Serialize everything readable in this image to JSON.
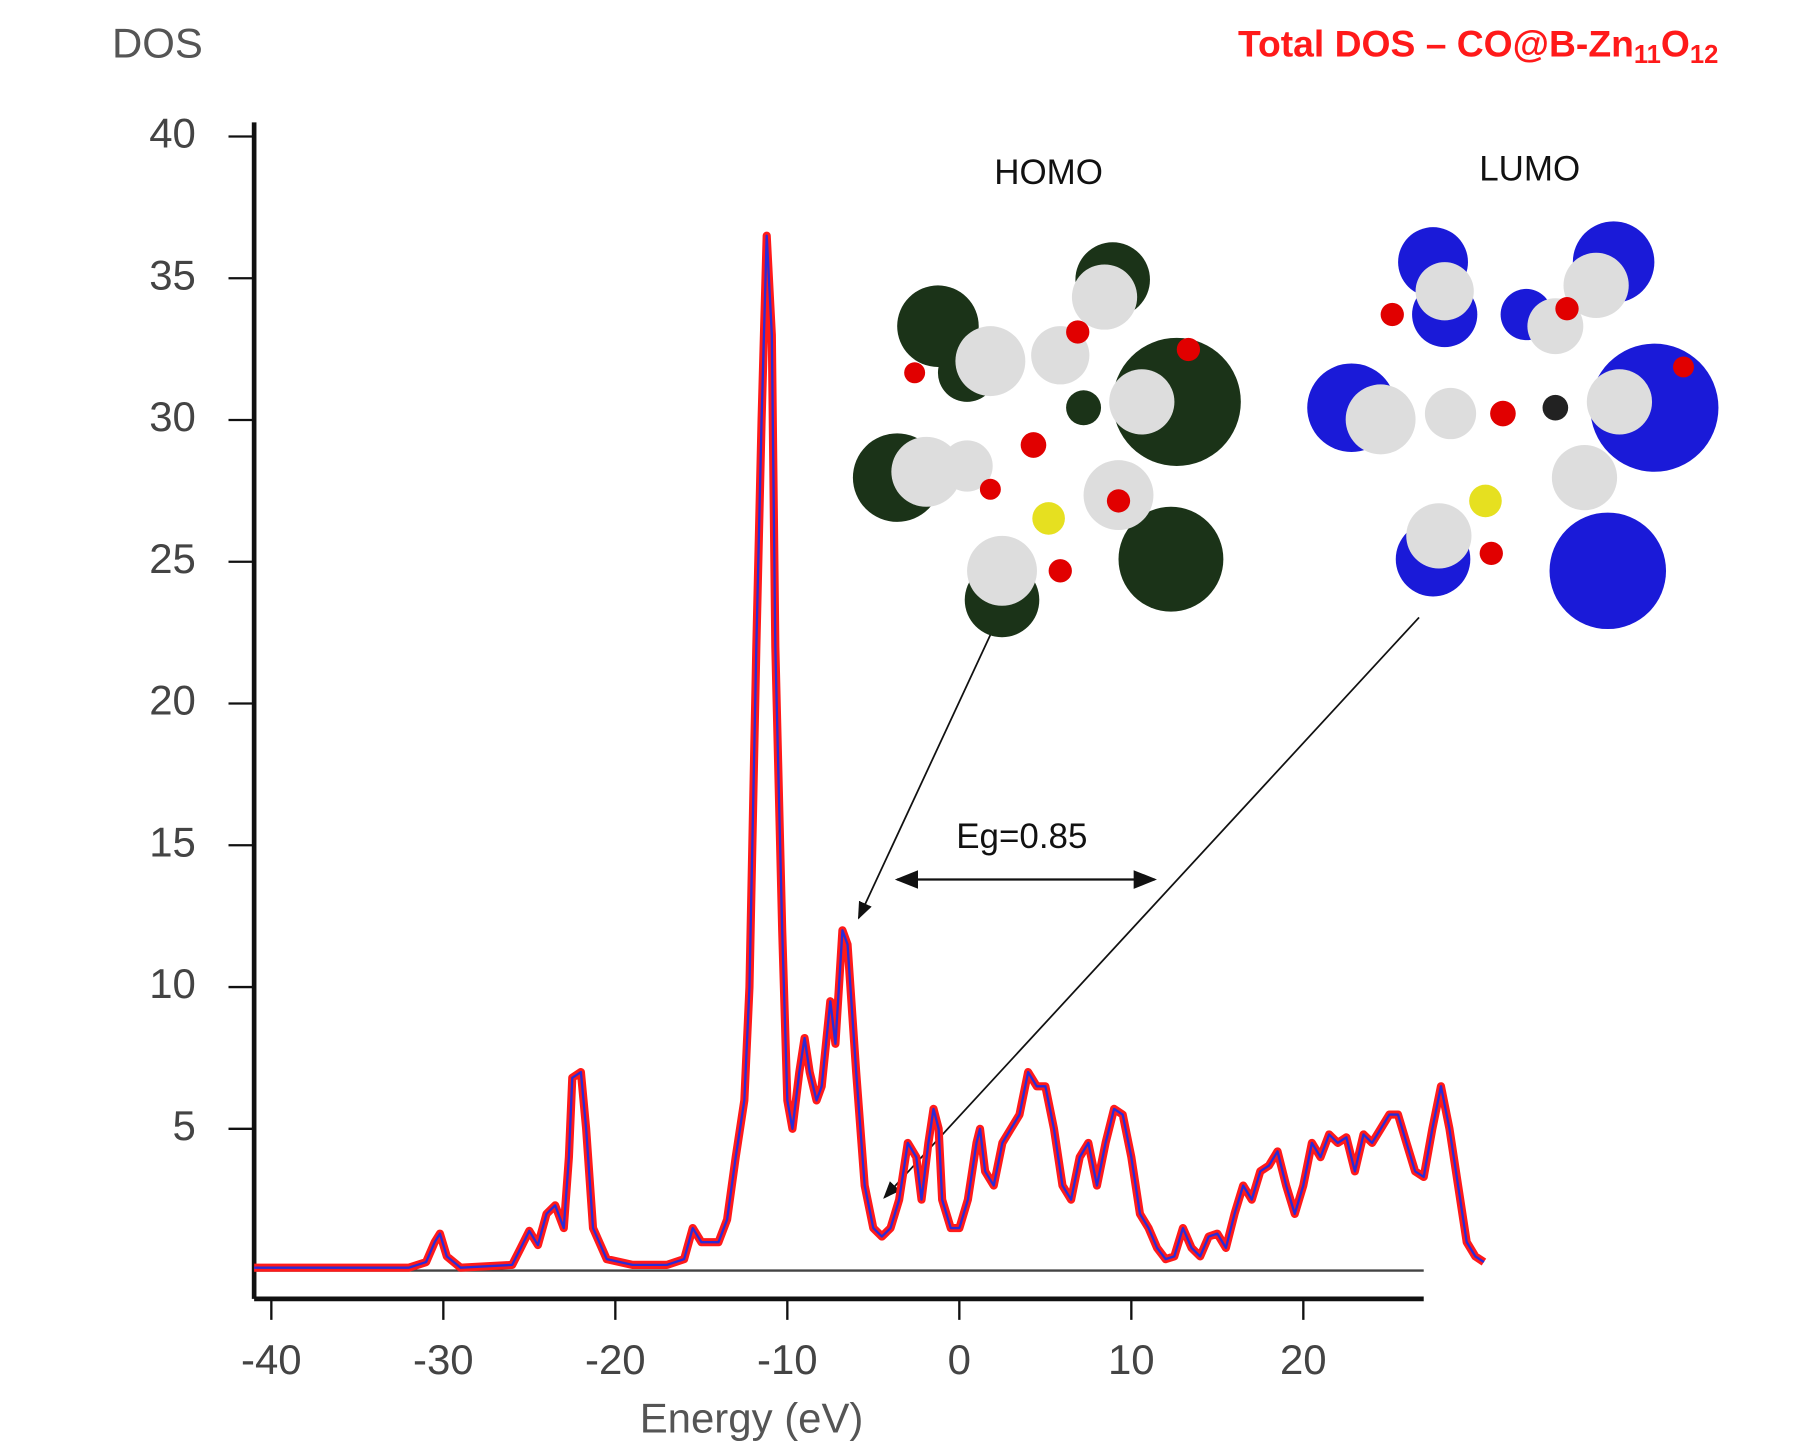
{
  "chart_data": {
    "type": "line",
    "title": [
      "Total DOS – CO@B-Zn",
      "11",
      "O",
      "12"
    ],
    "ylabel": "DOS",
    "xlabel": "Energy (eV)",
    "annotations": {
      "homo": "HOMO",
      "lumo": "LUMO",
      "gap": "Eg=0.85"
    },
    "colors": [
      "#ff1a1a",
      "#2b2bd6"
    ],
    "xlim": [
      -41,
      27
    ],
    "ylim": [
      -1,
      40.5
    ],
    "xticks": [
      -40,
      -30,
      -20,
      -10,
      0,
      10,
      20
    ],
    "yticks": [
      5,
      10,
      15,
      20,
      25,
      30,
      35,
      40
    ],
    "x": [
      -41,
      -32,
      -31,
      -30.5,
      -30.2,
      -29.8,
      -29,
      -26,
      -25.5,
      -25,
      -24.5,
      -24,
      -23.5,
      -23,
      -22.7,
      -22.5,
      -22,
      -21.7,
      -21.3,
      -20.5,
      -19,
      -17,
      -16,
      -15.5,
      -15,
      -14,
      -13.5,
      -13,
      -12.5,
      -12.2,
      -11.8,
      -11.5,
      -11.2,
      -10.9,
      -10.7,
      -10.3,
      -10,
      -9.7,
      -9.3,
      -9,
      -8.7,
      -8.3,
      -8,
      -7.5,
      -7.2,
      -6.8,
      -6.5,
      -6,
      -5.5,
      -5,
      -4.5,
      -4,
      -3.5,
      -3,
      -2.5,
      -2.2,
      -1.8,
      -1.5,
      -1.2,
      -1,
      -0.5,
      0,
      0.5,
      1,
      1.2,
      1.5,
      2,
      2.5,
      3,
      3.5,
      4,
      4.5,
      5,
      5.5,
      6,
      6.5,
      7,
      7.5,
      8,
      8.5,
      9,
      9.5,
      10,
      10.5,
      11,
      11.5,
      12,
      12.5,
      13,
      13.5,
      14,
      14.5,
      15,
      15.5,
      16,
      16.5,
      17,
      17.5,
      18,
      18.5,
      19,
      19.5,
      20,
      20.5,
      21,
      21.5,
      22,
      22.5,
      23,
      23.5,
      24,
      24.5,
      25,
      25.5,
      26,
      26.5,
      27,
      27.5,
      28,
      28.5,
      29,
      29.5,
      30,
      30.5
    ],
    "values": [
      0.1,
      0.1,
      0.3,
      1,
      1.3,
      0.5,
      0.1,
      0.2,
      0.8,
      1.4,
      0.9,
      2,
      2.3,
      1.5,
      4,
      6.8,
      7,
      5,
      1.5,
      0.4,
      0.2,
      0.2,
      0.4,
      1.5,
      1,
      1,
      1.8,
      4,
      6,
      10,
      22,
      30,
      36.5,
      33,
      22,
      12,
      6,
      5,
      7,
      8.2,
      7,
      6,
      6.5,
      9.5,
      8,
      12,
      11.5,
      7,
      3,
      1.5,
      1.2,
      1.5,
      2.5,
      4.5,
      4,
      2.5,
      4.5,
      5.7,
      5,
      2.5,
      1.5,
      1.5,
      2.5,
      4.5,
      5,
      3.5,
      3,
      4.5,
      5,
      5.5,
      7,
      6.5,
      6.5,
      5,
      3,
      2.5,
      4,
      4.5,
      3,
      4.5,
      5.7,
      5.5,
      4,
      2,
      1.5,
      0.8,
      0.4,
      0.5,
      1.5,
      0.8,
      0.5,
      1.2,
      1.3,
      0.8,
      2,
      3,
      2.5,
      3.5,
      3.7,
      4.2,
      3,
      2,
      3,
      4.5,
      4,
      4.8,
      4.5,
      4.7,
      3.5,
      4.8,
      4.5,
      5,
      5.5,
      5.5,
      4.5,
      3.5,
      3.3,
      5,
      6.5,
      5,
      3,
      1,
      0.5,
      0.3
    ]
  }
}
